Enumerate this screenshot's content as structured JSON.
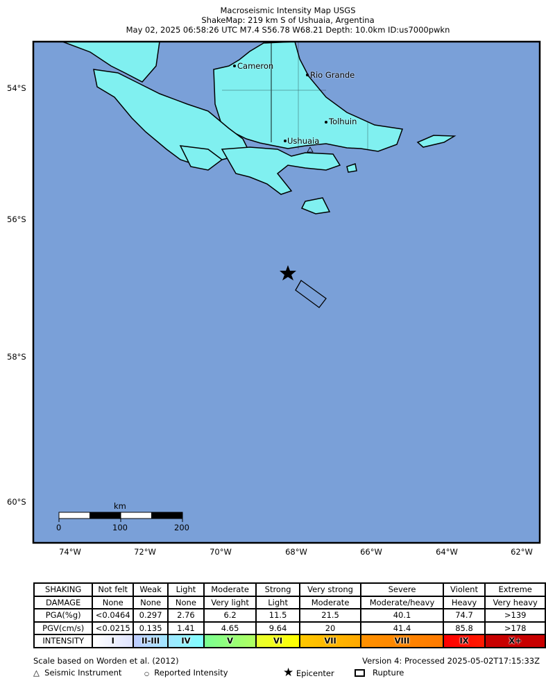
{
  "title": {
    "line1": "Macroseismic Intensity Map USGS",
    "line2": "ShakeMap: 219 km S of Ushuaia, Argentina",
    "line3": "May 02, 2025 06:58:26 UTC M7.4 S56.78 W68.21 Depth: 10.0km ID:us7000pwkn"
  },
  "map": {
    "water_color": "#7aa0d8",
    "land_color": "#80f0f0",
    "lat_labels": [
      "54°S",
      "56°S",
      "58°S",
      "60°S"
    ],
    "lon_labels": [
      "74°W",
      "72°W",
      "70°W",
      "68°W",
      "66°W",
      "64°W",
      "62°W"
    ],
    "cities": [
      {
        "name": "Cameron"
      },
      {
        "name": "Rio Grande"
      },
      {
        "name": "Tolhuin"
      },
      {
        "name": "Ushuaia"
      }
    ],
    "scale_bar": {
      "unit": "km",
      "ticks": [
        "0",
        "100",
        "200"
      ]
    },
    "epicenter_icon": "star-icon"
  },
  "legend": {
    "rows": [
      {
        "label": "SHAKING",
        "cells": [
          "Not felt",
          "Weak",
          "Light",
          "Moderate",
          "Strong",
          "Very strong",
          "Severe",
          "Violent",
          "Extreme"
        ]
      },
      {
        "label": "DAMAGE",
        "cells": [
          "None",
          "None",
          "None",
          "Very light",
          "Light",
          "Moderate",
          "Moderate/heavy",
          "Heavy",
          "Very heavy"
        ]
      },
      {
        "label": "PGA(%g)",
        "cells": [
          "<0.0464",
          "0.297",
          "2.76",
          "6.2",
          "11.5",
          "21.5",
          "40.1",
          "74.7",
          ">139"
        ]
      },
      {
        "label": "PGV(cm/s)",
        "cells": [
          "<0.0215",
          "0.135",
          "1.41",
          "4.65",
          "9.64",
          "20",
          "41.4",
          "85.8",
          ">178"
        ]
      },
      {
        "label": "INTENSITY",
        "cells": [
          "I",
          "II-III",
          "IV",
          "V",
          "VI",
          "VII",
          "VIII",
          "IX",
          "X+"
        ]
      }
    ],
    "intensity_colors": [
      "#ffffff",
      "#bfccff",
      "#a0e6ff",
      "#80ffff",
      "#7aff93",
      "#ffff00",
      "#ffc800",
      "#ff9100",
      "#ff0000",
      "#c80000"
    ],
    "scale_note": "Scale based on Worden et al. (2012)",
    "version": "Version 4: Processed 2025-05-02T17:15:33Z",
    "symbols": {
      "instrument": "Seismic Instrument",
      "reported": "Reported Intensity",
      "epicenter": "Epicenter",
      "rupture": "Rupture"
    }
  }
}
